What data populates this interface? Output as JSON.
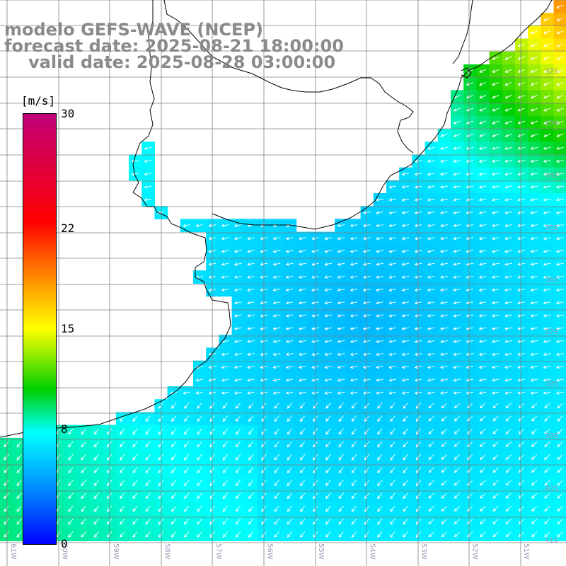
{
  "title": {
    "line1": "modelo GEFS-WAVE (NCEP)",
    "line2": "forecast date: 2025-08-21 18:00:00",
    "line3": "valid date: 2025-08-28 03:00:00"
  },
  "colorbar": {
    "unit": "[m/s]",
    "min": 0,
    "max": 30,
    "ticks": [
      {
        "label": "30",
        "value": 30
      },
      {
        "label": "22",
        "value": 22
      },
      {
        "label": "15",
        "value": 15
      },
      {
        "label": "8",
        "value": 8
      },
      {
        "label": "0",
        "value": 0
      }
    ]
  },
  "map": {
    "grid_lat": [
      -31,
      -32,
      -33,
      -34,
      -35,
      -36,
      -37,
      -38,
      -39,
      -40,
      -41
    ],
    "lat_labels": [
      {
        "text": "32S",
        "lat": -32
      },
      {
        "text": "33S",
        "lat": -33
      },
      {
        "text": "34S",
        "lat": -34
      },
      {
        "text": "35S",
        "lat": -35
      },
      {
        "text": "36S",
        "lat": -36
      },
      {
        "text": "37S",
        "lat": -37
      },
      {
        "text": "38S",
        "lat": -38
      },
      {
        "text": "39S",
        "lat": -39
      },
      {
        "text": "40S",
        "lat": -40
      },
      {
        "text": "41S",
        "lat": -41
      }
    ],
    "lon_labels": [
      {
        "text": "61W",
        "lon": -61
      },
      {
        "text": "60W",
        "lon": -60
      },
      {
        "text": "59W",
        "lon": -59
      },
      {
        "text": "58W",
        "lon": -58
      },
      {
        "text": "57W",
        "lon": -57
      },
      {
        "text": "56W",
        "lon": -56
      },
      {
        "text": "55W",
        "lon": -55
      },
      {
        "text": "54W",
        "lon": -54
      },
      {
        "text": "53W",
        "lon": -53
      },
      {
        "text": "52W",
        "lon": -52
      },
      {
        "text": "51W",
        "lon": -51
      }
    ],
    "field": "wind speed",
    "wind_direction": "from the east / northeast, arrows point west-southwest",
    "colors": {
      "land": "#ffffff",
      "grid": "#808080",
      "coast": "#000000",
      "arrows": "#ffffff"
    }
  }
}
